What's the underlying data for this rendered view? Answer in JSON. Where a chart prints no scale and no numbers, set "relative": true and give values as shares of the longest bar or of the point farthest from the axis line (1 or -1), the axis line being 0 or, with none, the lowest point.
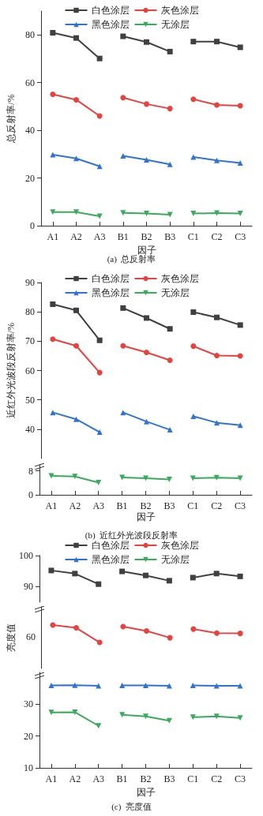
{
  "chart_data": [
    {
      "type": "line",
      "ylabel": "总反射率/%",
      "categories": [
        "A1",
        "A2",
        "A3",
        "B1",
        "B2",
        "B3",
        "C1",
        "C2",
        "C3"
      ],
      "ylim": [
        0,
        90
      ],
      "yticks": [
        0,
        20,
        40,
        60,
        80
      ],
      "legend": "top",
      "title": "(a)  总反射率",
      "xlabel": "因子",
      "series": [
        {
          "name": "白色涂层",
          "color": "#404040",
          "marker": "square",
          "values": [
            80.9,
            78.7,
            70.1,
            null,
            null,
            null,
            null,
            null,
            null
          ]
        },
        {
          "color": "#404040",
          "marker": "square",
          "values": [
            null,
            null,
            null,
            79.4,
            77.0,
            73.0,
            null,
            null,
            null
          ]
        },
        {
          "color": "#404040",
          "marker": "square",
          "values": [
            null,
            null,
            null,
            null,
            null,
            null,
            77.2,
            77.2,
            74.8
          ]
        },
        {
          "name": "灰色涂层",
          "color": "#e8423f",
          "marker": "circle",
          "values": [
            55.1,
            52.8,
            46.0,
            null,
            null,
            null,
            null,
            null,
            null
          ]
        },
        {
          "color": "#e8423f",
          "marker": "circle",
          "values": [
            null,
            null,
            null,
            53.7,
            51.0,
            49.1,
            null,
            null,
            null
          ]
        },
        {
          "color": "#e8423f",
          "marker": "circle",
          "values": [
            null,
            null,
            null,
            null,
            null,
            null,
            53.0,
            50.6,
            50.3
          ]
        },
        {
          "name": "黑色涂层",
          "color": "#2f73d4",
          "marker": "triangle",
          "values": [
            29.8,
            28.2,
            24.9,
            null,
            null,
            null,
            null,
            null,
            null
          ]
        },
        {
          "color": "#2f73d4",
          "marker": "triangle",
          "values": [
            null,
            null,
            null,
            29.3,
            27.6,
            25.7,
            null,
            null,
            null
          ]
        },
        {
          "color": "#2f73d4",
          "marker": "triangle",
          "values": [
            null,
            null,
            null,
            null,
            null,
            null,
            28.8,
            27.4,
            26.3
          ]
        },
        {
          "name": "无涂层",
          "color": "#3aaa5c",
          "marker": "triangle-down",
          "values": [
            5.7,
            5.7,
            4.0,
            null,
            null,
            null,
            null,
            null,
            null
          ]
        },
        {
          "color": "#3aaa5c",
          "marker": "triangle-down",
          "values": [
            null,
            null,
            null,
            5.4,
            5.1,
            4.6,
            null,
            null,
            null
          ]
        },
        {
          "color": "#3aaa5c",
          "marker": "triangle-down",
          "values": [
            null,
            null,
            null,
            null,
            null,
            null,
            5.1,
            5.3,
            5.1
          ]
        }
      ]
    },
    {
      "type": "line",
      "ylabel": "近红外光波段反射率/%",
      "categories": [
        null,
        null,
        null,
        null,
        null,
        null,
        null,
        null,
        null
      ],
      "ylim": [
        30,
        90
      ],
      "yticks": [
        40,
        50,
        60,
        70,
        80,
        90
      ],
      "legend": "top",
      "tick_labels": "y",
      "series": [
        {
          "name": "白色涂层",
          "color": "#404040",
          "marker": "square",
          "values": [
            82.6,
            80.5,
            70.3,
            null,
            null,
            null,
            null,
            null,
            null
          ]
        },
        {
          "color": "#404040",
          "marker": "square",
          "values": [
            null,
            null,
            null,
            81.3,
            77.9,
            74.2,
            null,
            null,
            null
          ]
        },
        {
          "color": "#404040",
          "marker": "square",
          "values": [
            null,
            null,
            null,
            null,
            null,
            null,
            79.9,
            78.1,
            75.5
          ]
        },
        {
          "name": "灰色涂层",
          "color": "#e8423f",
          "marker": "circle",
          "values": [
            70.7,
            68.4,
            59.3,
            null,
            null,
            null,
            null,
            null,
            null
          ]
        },
        {
          "color": "#e8423f",
          "marker": "circle",
          "values": [
            null,
            null,
            null,
            68.4,
            66.2,
            63.5,
            null,
            null,
            null
          ]
        },
        {
          "color": "#e8423f",
          "marker": "circle",
          "values": [
            null,
            null,
            null,
            null,
            null,
            null,
            68.3,
            65.1,
            65.0
          ]
        },
        {
          "name": "黑色涂层",
          "color": "#2f73d4",
          "marker": "triangle",
          "values": [
            45.7,
            43.4,
            39.0,
            null,
            null,
            null,
            null,
            null,
            null
          ]
        },
        {
          "color": "#2f73d4",
          "marker": "triangle",
          "values": [
            null,
            null,
            null,
            45.7,
            42.6,
            39.8,
            null,
            null,
            null
          ]
        },
        {
          "color": "#2f73d4",
          "marker": "triangle",
          "values": [
            null,
            null,
            null,
            null,
            null,
            null,
            44.4,
            42.2,
            41.4
          ]
        },
        {
          "name": "无涂层",
          "color": "#3aaa5c",
          "marker": "triangle-down",
          "values": [
            null,
            null,
            null,
            null,
            null,
            null,
            null,
            null,
            null
          ]
        }
      ]
    },
    {
      "type": "line",
      "categories": [
        "A1",
        "A2",
        "A3",
        "B1",
        "B2",
        "B3",
        "C1",
        "C2",
        "C3"
      ],
      "ylim": [
        0,
        10
      ],
      "yticks": [
        0,
        8
      ],
      "title": "(b)  近红外光波段反射率",
      "xlabel": "因子",
      "series": [
        {
          "color": "#3aaa5c",
          "marker": "triangle-down",
          "values": [
            6.3,
            6.1,
            4.1,
            null,
            null,
            null,
            null,
            null,
            null
          ]
        },
        {
          "color": "#3aaa5c",
          "marker": "triangle-down",
          "values": [
            null,
            null,
            null,
            5.8,
            5.5,
            5.1,
            null,
            null,
            null
          ]
        },
        {
          "color": "#3aaa5c",
          "marker": "triangle-down",
          "values": [
            null,
            null,
            null,
            null,
            null,
            null,
            5.5,
            5.7,
            5.5
          ]
        }
      ]
    },
    {
      "type": "line",
      "categories": [
        null,
        null,
        null,
        null,
        null,
        null,
        null,
        null,
        null
      ],
      "ylim": [
        85,
        100
      ],
      "yticks": [
        90,
        100
      ],
      "legend": "top",
      "tick_labels": "y",
      "series": [
        {
          "name": "白色涂层",
          "color": "#404040",
          "marker": "square",
          "values": [
            95.2,
            94.2,
            90.8,
            null,
            null,
            null,
            null,
            null,
            null
          ]
        },
        {
          "color": "#404040",
          "marker": "square",
          "values": [
            null,
            null,
            null,
            94.9,
            93.6,
            91.9,
            null,
            null,
            null
          ]
        },
        {
          "color": "#404040",
          "marker": "square",
          "values": [
            null,
            null,
            null,
            null,
            null,
            null,
            92.9,
            94.2,
            93.3
          ]
        },
        {
          "name": "灰色涂层",
          "color": "#e8423f",
          "marker": "circle",
          "values": [
            null,
            null,
            null,
            null,
            null,
            null,
            null,
            null,
            null
          ]
        },
        {
          "name": "黑色涂层",
          "color": "#2f73d4",
          "marker": "triangle",
          "values": [
            null,
            null,
            null,
            null,
            null,
            null,
            null,
            null,
            null
          ]
        },
        {
          "name": "无涂层",
          "color": "#3aaa5c",
          "marker": "triangle-down",
          "values": [
            null,
            null,
            null,
            null,
            null,
            null,
            null,
            null,
            null
          ]
        }
      ]
    },
    {
      "type": "line",
      "ylabel": "亮度值",
      "categories": [
        null,
        null,
        null,
        null,
        null,
        null,
        null,
        null,
        null
      ],
      "relative": true,
      "annotations": [
        "60"
      ],
      "tick_labels": "y",
      "series": [
        {
          "color": "#e8423f",
          "marker": "circle",
          "values": [
            1,
            0.84,
            0,
            null,
            null,
            null,
            null,
            null,
            null
          ]
        },
        {
          "color": "#e8423f",
          "marker": "circle",
          "values": [
            null,
            null,
            null,
            0.91,
            0.66,
            0.27,
            null,
            null,
            null
          ]
        },
        {
          "color": "#e8423f",
          "marker": "circle",
          "values": [
            null,
            null,
            null,
            null,
            null,
            null,
            0.77,
            0.54,
            0.52
          ]
        }
      ]
    },
    {
      "type": "line",
      "categories": [
        "A1",
        "A2",
        "A3",
        "B1",
        "B2",
        "B3",
        "C1",
        "C2",
        "C3"
      ],
      "ylim": [
        10,
        40
      ],
      "yticks": [
        10,
        20,
        30
      ],
      "title": "(c)  亮度值",
      "xlabel": "因子",
      "series": [
        {
          "color": "#2f73d4",
          "marker": "triangle",
          "values": [
            35.9,
            36.0,
            35.8,
            null,
            null,
            null,
            null,
            null,
            null
          ]
        },
        {
          "color": "#2f73d4",
          "marker": "triangle",
          "values": [
            null,
            null,
            null,
            35.9,
            35.9,
            35.8,
            null,
            null,
            null
          ]
        },
        {
          "color": "#2f73d4",
          "marker": "triangle",
          "values": [
            null,
            null,
            null,
            null,
            null,
            null,
            35.9,
            35.8,
            35.8
          ]
        },
        {
          "color": "#3aaa5c",
          "marker": "triangle-down",
          "values": [
            27.4,
            27.5,
            23.2,
            null,
            null,
            null,
            null,
            null,
            null
          ]
        },
        {
          "color": "#3aaa5c",
          "marker": "triangle-down",
          "values": [
            null,
            null,
            null,
            26.7,
            26.2,
            24.8,
            null,
            null,
            null
          ]
        },
        {
          "color": "#3aaa5c",
          "marker": "triangle-down",
          "values": [
            null,
            null,
            null,
            null,
            null,
            null,
            25.9,
            26.2,
            25.7
          ]
        }
      ]
    }
  ]
}
